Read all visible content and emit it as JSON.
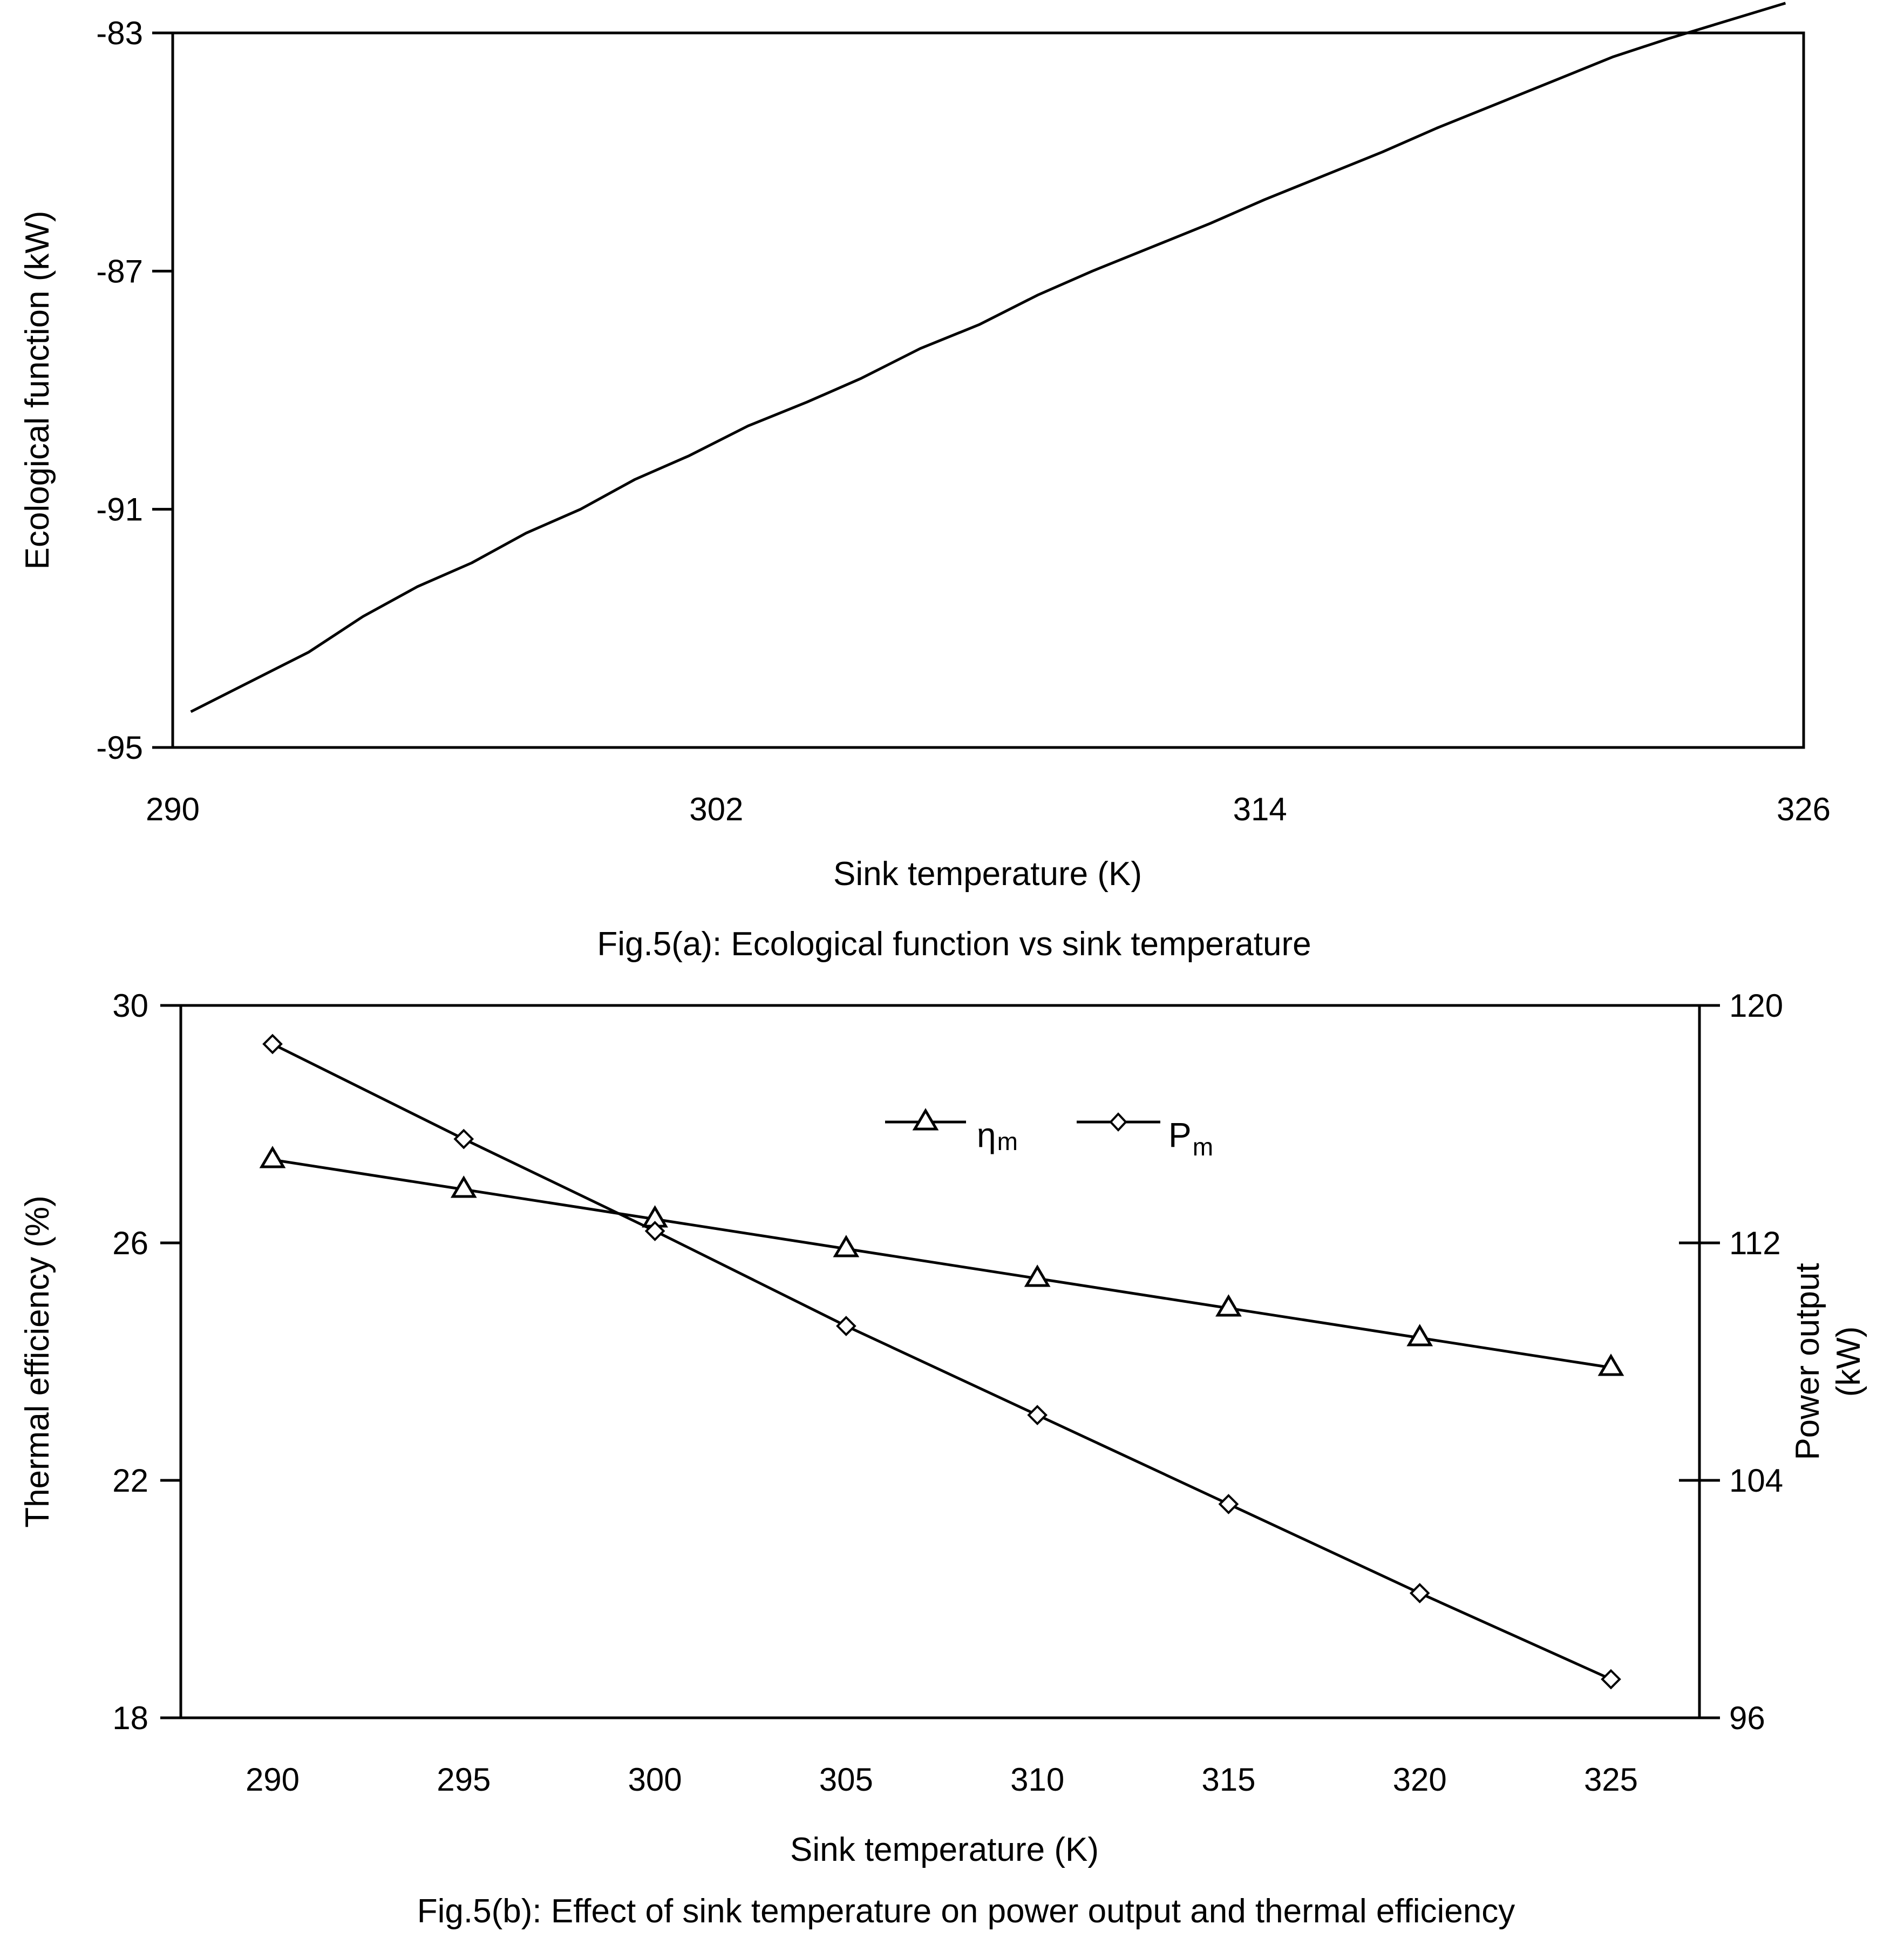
{
  "chart_data": [
    {
      "id": "fig5a",
      "type": "line",
      "title": "",
      "caption": "Fig.5(a): Ecological function vs sink temperature",
      "xlabel": "Sink temperature (K)",
      "ylabel": "Ecological function (kW)",
      "xlim": [
        290,
        326
      ],
      "ylim": [
        -95,
        -83
      ],
      "xticks": [
        290,
        302,
        314,
        326
      ],
      "yticks": [
        -83,
        -87,
        -91,
        -95
      ],
      "grid": false,
      "series": [
        {
          "name": "Ecological function",
          "marker": "none",
          "x": [
            290.4,
            291.7,
            293.0,
            294.2,
            295.4,
            296.6,
            297.8,
            299.0,
            300.2,
            301.4,
            302.7,
            304.0,
            305.2,
            306.5,
            307.8,
            309.1,
            310.3,
            311.6,
            312.9,
            314.1,
            315.4,
            316.7,
            317.9,
            319.2,
            320.5,
            321.8,
            323.0,
            324.3,
            325.6
          ],
          "values": [
            -94.4,
            -93.9,
            -93.4,
            -92.8,
            -92.3,
            -91.9,
            -91.4,
            -91.0,
            -90.5,
            -90.1,
            -89.6,
            -89.2,
            -88.8,
            -88.3,
            -87.9,
            -87.4,
            -87.0,
            -86.6,
            -86.2,
            -85.8,
            -85.4,
            -85.0,
            -84.6,
            -84.2,
            -83.8,
            -83.4,
            -83.1,
            -82.8,
            -82.5
          ]
        }
      ]
    },
    {
      "id": "fig5b",
      "type": "line",
      "title": "",
      "caption": "Fig.5(b): Effect of sink temperature on power output and thermal efficiency",
      "xlabel": "Sink temperature (K)",
      "ylabel_left": "Thermal efficiency (%)",
      "ylabel_right_lines": [
        "Power output",
        "(kW)"
      ],
      "categories": [
        290,
        295,
        300,
        305,
        310,
        315,
        320,
        325
      ],
      "ylim_left": [
        18,
        30
      ],
      "yticks_left": [
        30,
        26,
        22,
        18
      ],
      "ylim_right": [
        96,
        120
      ],
      "yticks_right": [
        120,
        112,
        104,
        96
      ],
      "grid": false,
      "legend_position": "top-center",
      "series": [
        {
          "name": "η",
          "subscript": "m",
          "axis": "left",
          "marker": "triangle",
          "values": [
            27.4,
            26.9,
            26.4,
            25.9,
            25.4,
            24.9,
            24.4,
            23.9
          ]
        },
        {
          "name": "P",
          "subscript": "m",
          "axis": "right",
          "marker": "diamond",
          "values": [
            118.7,
            115.5,
            112.4,
            109.2,
            106.2,
            103.2,
            100.2,
            97.3
          ]
        }
      ]
    }
  ]
}
